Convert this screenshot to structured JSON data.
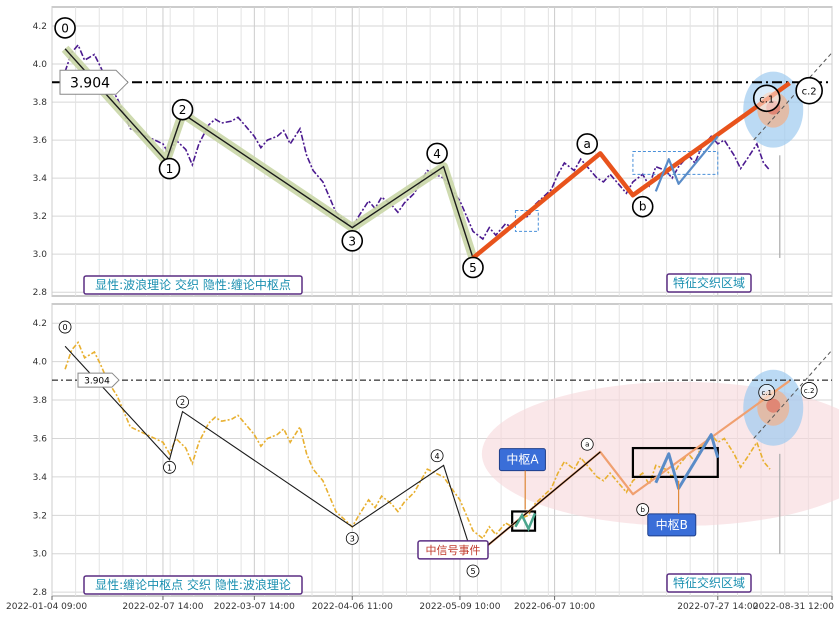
{
  "chart_data": [
    {
      "type": "line",
      "panel": "top",
      "ylim": [
        2.78,
        4.3
      ],
      "yticks": [
        2.8,
        3.0,
        3.2,
        3.4,
        3.6,
        3.8,
        4.0,
        4.2
      ],
      "hline": {
        "value": 3.904,
        "label": "3.904"
      },
      "price_points": [
        [
          "2022-01-08",
          3.96
        ],
        [
          "2022-01-10",
          4.06
        ],
        [
          "2022-01-12",
          4.1
        ],
        [
          "2022-01-14",
          4.02
        ],
        [
          "2022-01-17",
          4.05
        ],
        [
          "2022-01-19",
          3.98
        ],
        [
          "2022-01-21",
          3.9
        ],
        [
          "2022-01-24",
          3.82
        ],
        [
          "2022-01-26",
          3.74
        ],
        [
          "2022-01-28",
          3.66
        ],
        [
          "2022-02-07",
          3.58
        ],
        [
          "2022-02-09",
          3.52
        ],
        [
          "2022-02-11",
          3.6
        ],
        [
          "2022-02-14",
          3.55
        ],
        [
          "2022-02-16",
          3.47
        ],
        [
          "2022-02-18",
          3.58
        ],
        [
          "2022-02-21",
          3.68
        ],
        [
          "2022-02-23",
          3.71
        ],
        [
          "2022-02-25",
          3.69
        ],
        [
          "2022-02-28",
          3.7
        ],
        [
          "2022-03-02",
          3.72
        ],
        [
          "2022-03-04",
          3.68
        ],
        [
          "2022-03-07",
          3.62
        ],
        [
          "2022-03-09",
          3.56
        ],
        [
          "2022-03-11",
          3.6
        ],
        [
          "2022-03-14",
          3.62
        ],
        [
          "2022-03-16",
          3.65
        ],
        [
          "2022-03-18",
          3.58
        ],
        [
          "2022-03-21",
          3.66
        ],
        [
          "2022-03-23",
          3.52
        ],
        [
          "2022-03-25",
          3.44
        ],
        [
          "2022-03-28",
          3.38
        ],
        [
          "2022-03-30",
          3.3
        ],
        [
          "2022-04-01",
          3.22
        ],
        [
          "2022-04-06",
          3.14
        ],
        [
          "2022-04-08",
          3.2
        ],
        [
          "2022-04-11",
          3.28
        ],
        [
          "2022-04-13",
          3.24
        ],
        [
          "2022-04-15",
          3.3
        ],
        [
          "2022-04-18",
          3.26
        ],
        [
          "2022-04-20",
          3.22
        ],
        [
          "2022-04-22",
          3.27
        ],
        [
          "2022-04-25",
          3.32
        ],
        [
          "2022-04-27",
          3.38
        ],
        [
          "2022-04-29",
          3.44
        ],
        [
          "2022-05-04",
          3.4
        ],
        [
          "2022-05-06",
          3.35
        ],
        [
          "2022-05-09",
          3.28
        ],
        [
          "2022-05-11",
          3.2
        ],
        [
          "2022-05-13",
          3.12
        ],
        [
          "2022-05-16",
          3.08
        ],
        [
          "2022-05-18",
          3.14
        ],
        [
          "2022-05-20",
          3.1
        ],
        [
          "2022-05-23",
          3.16
        ],
        [
          "2022-05-25",
          3.14
        ],
        [
          "2022-05-27",
          3.18
        ],
        [
          "2022-05-30",
          3.2
        ],
        [
          "2022-06-01",
          3.26
        ],
        [
          "2022-06-06",
          3.34
        ],
        [
          "2022-06-08",
          3.42
        ],
        [
          "2022-06-10",
          3.48
        ],
        [
          "2022-06-13",
          3.44
        ],
        [
          "2022-06-15",
          3.5
        ],
        [
          "2022-06-17",
          3.46
        ],
        [
          "2022-06-20",
          3.4
        ],
        [
          "2022-06-22",
          3.38
        ],
        [
          "2022-06-24",
          3.42
        ],
        [
          "2022-06-27",
          3.36
        ],
        [
          "2022-06-29",
          3.32
        ],
        [
          "2022-07-01",
          3.38
        ],
        [
          "2022-07-04",
          3.42
        ],
        [
          "2022-07-06",
          3.36
        ],
        [
          "2022-07-08",
          3.46
        ],
        [
          "2022-07-11",
          3.44
        ],
        [
          "2022-07-13",
          3.4
        ],
        [
          "2022-07-15",
          3.46
        ],
        [
          "2022-07-18",
          3.52
        ],
        [
          "2022-07-20",
          3.48
        ],
        [
          "2022-07-22",
          3.56
        ],
        [
          "2022-07-25",
          3.62
        ],
        [
          "2022-07-27",
          3.58
        ],
        [
          "2022-07-29",
          3.6
        ],
        [
          "2022-08-01",
          3.52
        ],
        [
          "2022-08-03",
          3.45
        ],
        [
          "2022-08-05",
          3.5
        ],
        [
          "2022-08-08",
          3.58
        ],
        [
          "2022-08-10",
          3.48
        ],
        [
          "2022-08-12",
          3.44
        ]
      ],
      "wave": [
        [
          "2022-01-08",
          4.08
        ],
        [
          "2022-02-08",
          3.49
        ],
        [
          "2022-02-13",
          3.74
        ],
        [
          "2022-04-06",
          3.14
        ],
        [
          "2022-05-04",
          3.46
        ],
        [
          "2022-05-13",
          2.98
        ]
      ],
      "wave_labels": [
        {
          "text": "0",
          "x": "2022-01-08",
          "y": 4.19
        },
        {
          "text": "1",
          "x": "2022-02-09",
          "y": 3.45
        },
        {
          "text": "2",
          "x": "2022-02-13",
          "y": 3.76
        },
        {
          "text": "3",
          "x": "2022-04-06",
          "y": 3.07
        },
        {
          "text": "4",
          "x": "2022-05-02",
          "y": 3.53
        },
        {
          "text": "5",
          "x": "2022-05-13",
          "y": 2.93
        }
      ],
      "orange": [
        [
          "2022-05-13",
          2.98
        ],
        [
          "2022-06-21",
          3.53
        ],
        [
          "2022-07-01",
          3.31
        ],
        [
          "2022-08-18",
          3.9
        ]
      ],
      "orange_labels": [
        {
          "text": "a",
          "x": "2022-06-17",
          "y": 3.58
        },
        {
          "text": "b",
          "x": "2022-07-04",
          "y": 3.25
        },
        {
          "text": "c.1",
          "x": "2022-08-11",
          "y": 3.82
        },
        {
          "text": "c.2",
          "x": "2022-08-24",
          "y": 3.86
        }
      ],
      "callout": {
        "text": "特征交织区域",
        "x": "2022-07-19",
        "y": 2.86
      },
      "legend": "显性:波浪理论 交织 隐性:缠论中枢点"
    },
    {
      "type": "line",
      "panel": "bottom",
      "ylim": [
        2.78,
        4.3
      ],
      "yticks": [
        2.8,
        3.0,
        3.2,
        3.4,
        3.6,
        3.8,
        4.0,
        4.2
      ],
      "hline": {
        "value": 3.904,
        "label": "3.904"
      },
      "wave": [
        [
          "2022-01-08",
          4.08
        ],
        [
          "2022-02-09",
          3.49
        ],
        [
          "2022-02-13",
          3.74
        ],
        [
          "2022-04-06",
          3.14
        ],
        [
          "2022-05-04",
          3.46
        ],
        [
          "2022-05-13",
          2.98
        ]
      ],
      "wave_labels": [
        {
          "text": "0",
          "x": "2022-01-08",
          "y": 4.18
        },
        {
          "text": "1",
          "x": "2022-02-09",
          "y": 3.45
        },
        {
          "text": "2",
          "x": "2022-02-13",
          "y": 3.79
        },
        {
          "text": "3",
          "x": "2022-04-06",
          "y": 3.08
        },
        {
          "text": "4",
          "x": "2022-05-02",
          "y": 3.51
        },
        {
          "text": "5",
          "x": "2022-05-13",
          "y": 2.91
        }
      ],
      "orange": [
        [
          "2022-05-13",
          2.98
        ],
        [
          "2022-06-21",
          3.53
        ],
        [
          "2022-07-01",
          3.31
        ],
        [
          "2022-08-18",
          3.9
        ]
      ],
      "orange_labels": [
        {
          "text": "a",
          "x": "2022-06-17",
          "y": 3.57
        },
        {
          "text": "b",
          "x": "2022-07-04",
          "y": 3.23
        },
        {
          "text": "c.1",
          "x": "2022-08-11",
          "y": 3.84
        },
        {
          "text": "c.2",
          "x": "2022-08-24",
          "y": 3.85
        }
      ],
      "zhongshu_a": {
        "text": "中枢A",
        "x1": "2022-05-25",
        "x2": "2022-06-01",
        "y1": 3.12,
        "y2": 3.22
      },
      "zhongshu_b": {
        "text": "中枢B",
        "x1": "2022-07-01",
        "x2": "2022-07-27",
        "y1": 3.4,
        "y2": 3.55
      },
      "signal": {
        "text": "中信号事件",
        "x": "2022-05-04",
        "y": 3.02
      },
      "callout": {
        "text": "特征交织区域",
        "x": "2022-07-19",
        "y": 2.86
      },
      "legend": "显性:缠论中枢点 交织 隐性:波浪理论"
    }
  ],
  "x_axis": {
    "start": "2022-01-04",
    "end": "2022-08-31",
    "ticks": [
      {
        "date": "2022-01-04",
        "label": "2022-01-04 09:00"
      },
      {
        "date": "2022-02-07",
        "label": "2022-02-07 14:00"
      },
      {
        "date": "2022-03-07",
        "label": "2022-03-07 14:00"
      },
      {
        "date": "2022-04-06",
        "label": "2022-04-06 11:00"
      },
      {
        "date": "2022-05-09",
        "label": "2022-05-09 10:00"
      },
      {
        "date": "2022-06-07",
        "label": "2022-06-07 10:00"
      },
      {
        "date": "2022-07-27",
        "label": "2022-07-27 14:00"
      },
      {
        "date": "2022-08-31",
        "label": "2022-08-31 12:00"
      }
    ]
  },
  "colors": {
    "price_top": "#4b1a8f",
    "price_bottom": "#e8b030",
    "wave": "#1a1a1a",
    "wave_glow": "#c9d6a6",
    "orange": "#e8531c",
    "orange_light": "#f0a070",
    "zone_blue": "#9ecbef",
    "zone_red": "#e07060",
    "box_purple": "#5a2d82",
    "callout_text": "#1a8fb0",
    "signal_text": "#c0392b",
    "zhongshu_bg": "#3a6ed8"
  }
}
